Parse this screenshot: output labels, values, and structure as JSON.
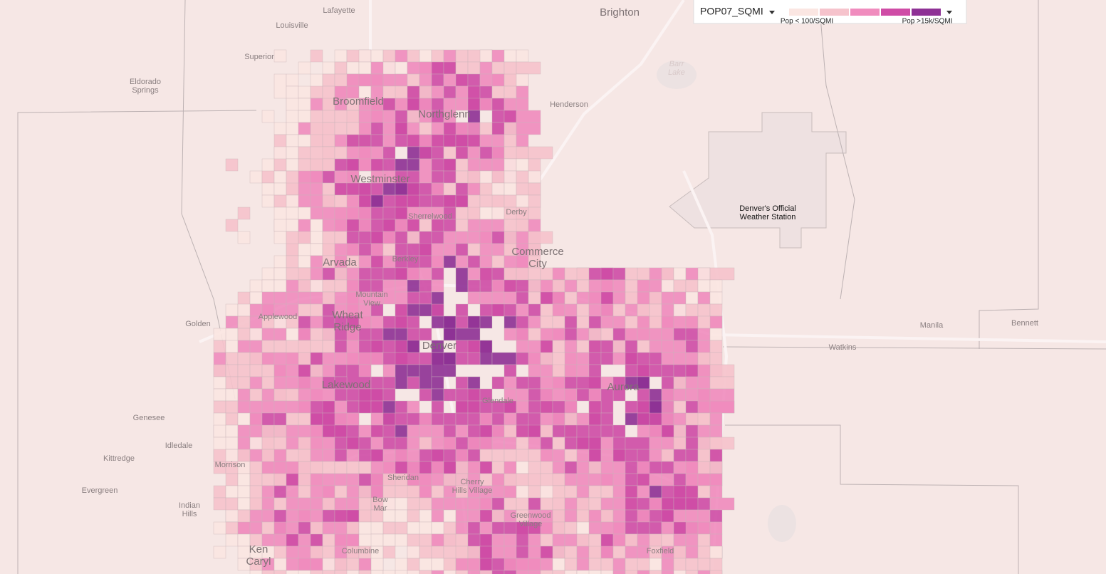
{
  "legend": {
    "field": "POP07_SQMI",
    "colors": [
      "#fbe6e2",
      "#f6c3cc",
      "#f08cbe",
      "#cf4ca6",
      "#8e3195"
    ],
    "low_label": "Pop < 100/SQMI",
    "high_label": "Pop >15k/SQMI"
  },
  "places": [
    [
      "Lafayette"
    ],
    [
      "Louisville"
    ],
    [
      "Brighton"
    ],
    [
      "Superior"
    ],
    [
      "Eldorado",
      "Springs"
    ],
    [
      "Broomfield"
    ],
    [
      "Northglenn"
    ],
    [
      "Henderson"
    ],
    [
      "Barr",
      "Lake"
    ],
    [
      "Westminster"
    ],
    [
      "Sherrelwood"
    ],
    [
      "Derby"
    ],
    [
      "Commerce",
      "City"
    ],
    [
      "Berkley"
    ],
    [
      "Arvada"
    ],
    [
      "Mountain",
      "View"
    ],
    [
      "Applewood"
    ],
    [
      "Wheat",
      "Ridge"
    ],
    [
      "Golden"
    ],
    [
      "Denver"
    ],
    [
      "Lakewood"
    ],
    [
      "Glendale"
    ],
    [
      "Aurora"
    ],
    [
      "Genesee"
    ],
    [
      "Idledale"
    ],
    [
      "Kittredge"
    ],
    [
      "Morrison"
    ],
    [
      "Evergreen"
    ],
    [
      "Indian",
      "Hills"
    ],
    [
      "Sheridan"
    ],
    [
      "Cherry",
      "Hills Village"
    ],
    [
      "Bow",
      "Mar"
    ],
    [
      "Greenwood",
      "Village"
    ],
    [
      "Ken",
      "Caryl"
    ],
    [
      "Columbine"
    ],
    [
      "Foxfield"
    ],
    [
      "Manila"
    ],
    [
      "Watkins"
    ],
    [
      "Bennett"
    ],
    [
      "Denver's Official",
      "Weather Station"
    ]
  ]
}
